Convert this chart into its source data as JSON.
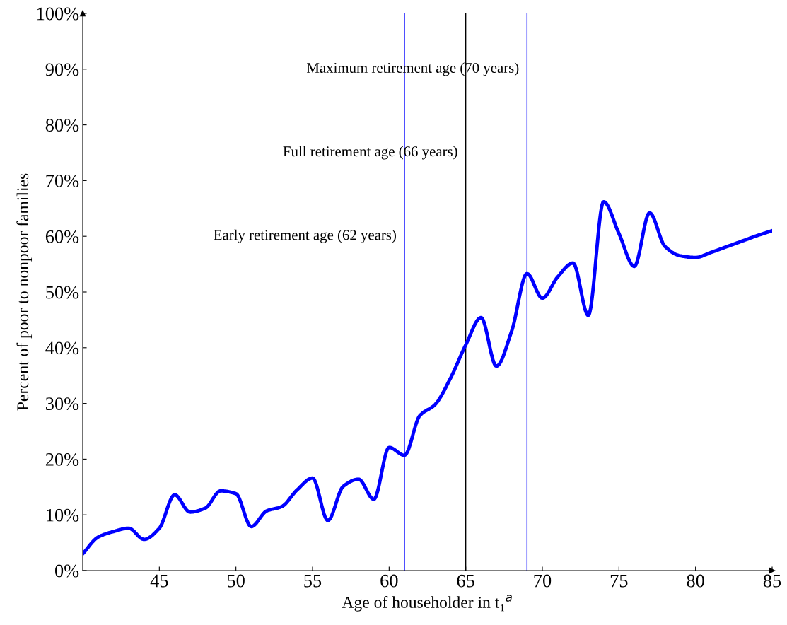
{
  "chart_data": {
    "type": "line",
    "xlabel": "Age of householder in t₁$^{a}$",
    "ylabel": "Percent of poor to nonpoor families",
    "series": [
      {
        "color": "#0000ff",
        "x": [
          40,
          41,
          42,
          43,
          44,
          45,
          46,
          47,
          48,
          49,
          50,
          51,
          52,
          53,
          54,
          55,
          56,
          57,
          58,
          59,
          60,
          61,
          62,
          63,
          64,
          65,
          66,
          67,
          68,
          69,
          70,
          71,
          72,
          73,
          74,
          75,
          76,
          77,
          78,
          79,
          80,
          81,
          82,
          83,
          84,
          85
        ],
        "values": [
          3,
          6,
          7,
          7.6,
          5.6,
          7.6,
          13.6,
          10.5,
          11.2,
          14.3,
          13.8,
          7.9,
          10.7,
          11.5,
          14.5,
          16.6,
          9,
          15.1,
          16.4,
          12.8,
          22.1,
          20.7,
          27.8,
          29.8,
          34.5,
          40.5,
          45.4,
          36.7,
          43,
          53.3,
          48.9,
          52.7,
          55.2,
          45.8,
          66.2,
          60.5,
          54.6,
          64.2,
          58.2,
          56.5,
          56.2,
          57.1,
          58.1,
          59.1,
          60.1,
          61
        ]
      }
    ],
    "xlim": [
      40,
      85
    ],
    "xticks": [
      45,
      50,
      55,
      60,
      65,
      70,
      75,
      80,
      85
    ],
    "ylim": [
      0,
      100
    ],
    "yticks": [
      {
        "value": 0,
        "label": "0%"
      },
      {
        "value": 10,
        "label": "10%"
      },
      {
        "value": 20,
        "label": "20%"
      },
      {
        "value": 30,
        "label": "30%"
      },
      {
        "value": 40,
        "label": "40%"
      },
      {
        "value": 50,
        "label": "50%"
      },
      {
        "value": 60,
        "label": "60%"
      },
      {
        "value": 70,
        "label": "70%"
      },
      {
        "value": 80,
        "label": "80%"
      },
      {
        "value": 90,
        "label": "90%"
      },
      {
        "value": 100,
        "label": "100%"
      }
    ],
    "ref_lines": [
      {
        "axis": "x",
        "value": 61,
        "color": "#0000ff"
      },
      {
        "axis": "x",
        "value": 65,
        "color": "#000000"
      },
      {
        "axis": "x",
        "value": 69,
        "color": "#0000ff"
      }
    ],
    "annotations": [
      {
        "text": "Early retirement age (62 years)",
        "x": 61,
        "y": 60
      },
      {
        "text": "Full retirement age (66 years)",
        "x": 65,
        "y": 75
      },
      {
        "text": "Maximum retirement age (70 years)",
        "x": 69,
        "y": 90
      }
    ],
    "grid": false,
    "legend": false,
    "marker": "none",
    "line_style": "solid"
  }
}
